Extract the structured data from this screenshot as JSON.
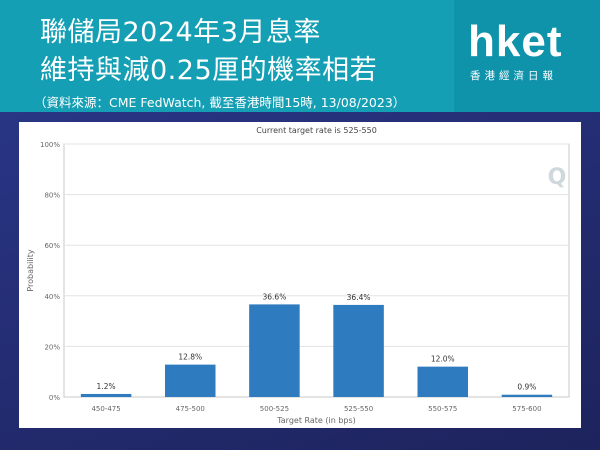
{
  "header": {
    "title_line1": "聯儲局2024年3月息率",
    "title_line2": "維持與減0.25厘的機率相若",
    "subtitle": "（資料來源：CME FedWatch, 截至香港時間15時, 13/08/2023）"
  },
  "brand": {
    "logo": "hket",
    "logo_sub": "香港經濟日報"
  },
  "colors": {
    "banner": "#149fb4",
    "background": "#26307a",
    "bar": "#2e7bbf"
  },
  "chart_data": {
    "type": "bar",
    "title": "Current target rate is 525-550",
    "xlabel": "Target Rate (in bps)",
    "ylabel": "Probability",
    "categories": [
      "450-475",
      "475-500",
      "500-525",
      "525-550",
      "550-575",
      "575-600"
    ],
    "values": [
      1.2,
      12.8,
      36.6,
      36.4,
      12.0,
      0.9
    ],
    "value_labels": [
      "1.2%",
      "12.8%",
      "36.6%",
      "36.4%",
      "12.0%",
      "0.9%"
    ],
    "y_ticks": [
      "0%",
      "20%",
      "40%",
      "60%",
      "80%",
      "100%"
    ],
    "ylim": [
      0,
      100
    ],
    "grid": true,
    "legend": "none",
    "watermark_icon": "q-logo-icon"
  }
}
